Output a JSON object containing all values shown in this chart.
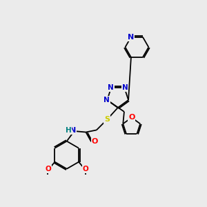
{
  "bg_color": "#ebebeb",
  "atom_colors": {
    "C": "#000000",
    "N": "#0000cc",
    "O": "#ff0000",
    "S": "#cccc00",
    "H": "#008080"
  },
  "bond_color": "#000000",
  "figsize": [
    3.0,
    3.0
  ],
  "dpi": 100
}
